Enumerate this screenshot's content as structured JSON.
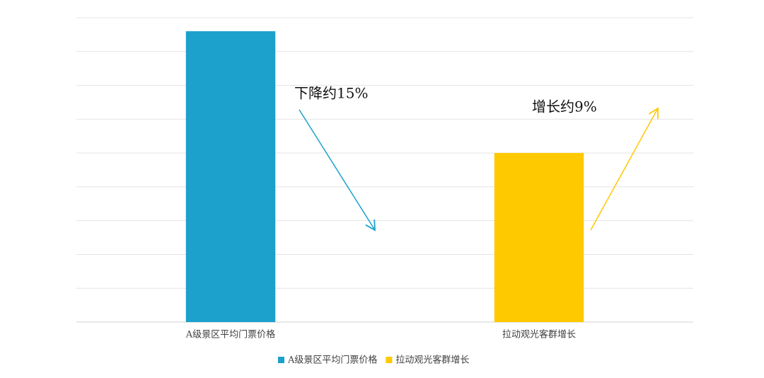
{
  "chart_data": {
    "type": "bar",
    "categories": [
      "A级景区平均门票价格",
      "拉动观光客群增长"
    ],
    "values": [
      8.6,
      5
    ],
    "colors": [
      "#1ca0cc",
      "#ffc900"
    ],
    "ylim": [
      0,
      9
    ],
    "yticks": [
      0,
      1,
      2,
      3,
      4,
      5,
      6,
      7,
      8,
      9
    ],
    "grid": true,
    "annotations": [
      "下降约15%",
      "增长约9%"
    ],
    "legend": "bottom"
  }
}
